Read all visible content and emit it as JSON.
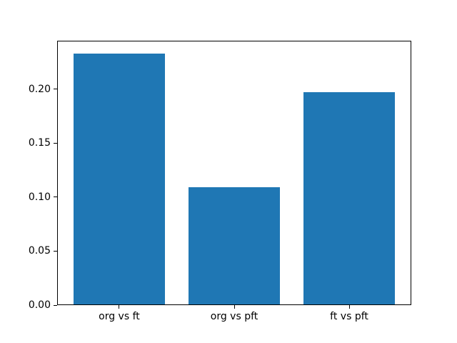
{
  "chart_data": {
    "type": "bar",
    "title": "",
    "xlabel": "",
    "ylabel": "",
    "categories": [
      "org vs ft",
      "org vs pft",
      "ft vs pft"
    ],
    "values": [
      0.233,
      0.109,
      0.197
    ],
    "ytick_labels": [
      "0.00",
      "0.05",
      "0.10",
      "0.15",
      "0.20"
    ],
    "ytick_values": [
      0.0,
      0.05,
      0.1,
      0.15,
      0.2
    ],
    "ylim": [
      0,
      0.2447
    ],
    "xlim": [
      -0.54,
      2.54
    ],
    "bar_width": 0.8,
    "bar_color": "#1f77b4",
    "axis_color": "#000000",
    "background_color": "#ffffff",
    "grid": false,
    "legend": null
  }
}
